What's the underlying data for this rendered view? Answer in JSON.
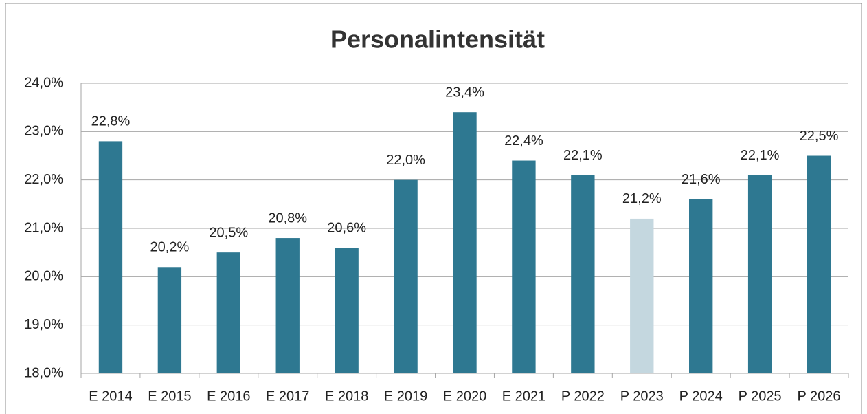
{
  "chart_data": {
    "type": "bar",
    "title": "Personalintensität",
    "categories": [
      "E 2014",
      "E 2015",
      "E 2016",
      "E 2017",
      "E 2018",
      "E 2019",
      "E 2020",
      "E 2021",
      "P 2022",
      "P 2023",
      "P 2024",
      "P 2025",
      "P 2026"
    ],
    "values": [
      22.8,
      20.2,
      20.5,
      20.8,
      20.6,
      22.0,
      23.4,
      22.4,
      22.1,
      21.2,
      21.6,
      22.1,
      22.5
    ],
    "value_labels": [
      "22,8%",
      "20,2%",
      "20,5%",
      "20,8%",
      "20,6%",
      "22,0%",
      "23,4%",
      "22,4%",
      "22,1%",
      "21,2%",
      "21,6%",
      "22,1%",
      "22,5%"
    ],
    "colors": [
      "#2e7891",
      "#2e7891",
      "#2e7891",
      "#2e7891",
      "#2e7891",
      "#2e7891",
      "#2e7891",
      "#2e7891",
      "#2e7891",
      "#c4d7df",
      "#2e7891",
      "#2e7891",
      "#2e7891"
    ],
    "ylim": [
      18,
      24
    ],
    "yticks": [
      {
        "value": 18,
        "label": "18,0%"
      },
      {
        "value": 19,
        "label": "19,0%"
      },
      {
        "value": 20,
        "label": "20,0%"
      },
      {
        "value": 21,
        "label": "21,0%"
      },
      {
        "value": 22,
        "label": "22,0%"
      },
      {
        "value": 23,
        "label": "23,0%"
      },
      {
        "value": 24,
        "label": "24,0%"
      }
    ],
    "grid": true
  }
}
